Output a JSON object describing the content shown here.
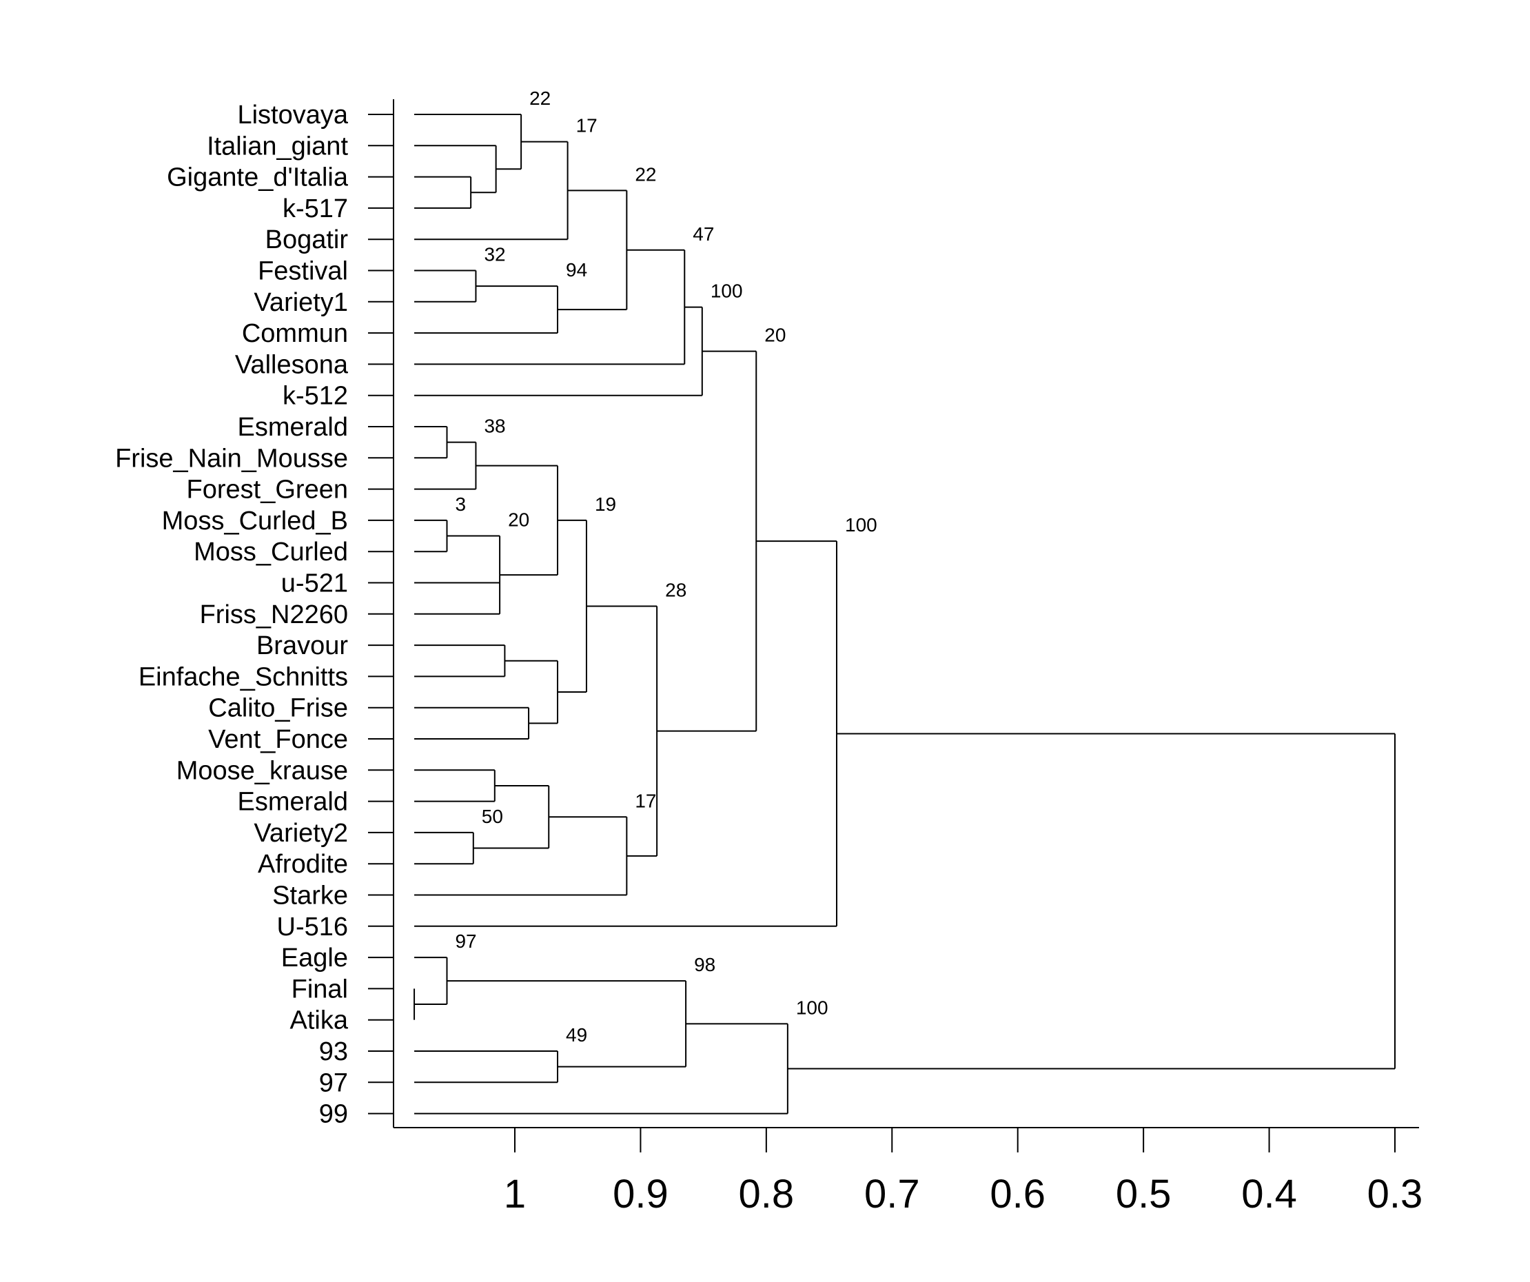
{
  "chart_data": {
    "type": "dendrogram",
    "title": "",
    "xlabel": "",
    "ylabel": "",
    "orientation": "horizontal",
    "x_axis": {
      "range": [
        1.1,
        0.28
      ],
      "ticks": [
        1,
        0.9,
        0.8,
        0.7,
        0.6,
        0.5,
        0.4,
        0.3
      ],
      "tick_labels": [
        "1",
        "0.9",
        "0.8",
        "0.7",
        "0.6",
        "0.5",
        "0.4",
        "0.3"
      ]
    },
    "leaf_height": 1.08,
    "leaves": [
      "Listovaya",
      "Italian_giant",
      "Gigante_d'Italia",
      "k-517",
      "Bogatir",
      "Festival",
      "Variety1",
      "Commun",
      "Vallesona",
      "k-512",
      "Esmerald",
      "Frise_Nain_Mousse",
      "Forest_Green",
      "Moss_Curled_B",
      "Moss_Curled",
      "u-521",
      "Friss_N2260",
      "Bravour",
      "Einfache_Schnitts",
      "Calito_Frise",
      "Vent_Fonce",
      "Moose_krause",
      "Esmerald",
      "Variety2",
      "Afrodite",
      "Starke",
      "U-516",
      "Eagle",
      "Final",
      "Atika",
      "93",
      "97",
      "99"
    ],
    "merges": [
      {
        "id": "n1",
        "children": [
          "L2",
          "L3"
        ],
        "height": 1.035,
        "support": ""
      },
      {
        "id": "n2",
        "children": [
          "L1",
          "n1"
        ],
        "height": 1.015,
        "support": ""
      },
      {
        "id": "n3",
        "children": [
          "L0",
          "n2"
        ],
        "height": 0.995,
        "support": "22"
      },
      {
        "id": "n4",
        "children": [
          "n3",
          "L4"
        ],
        "height": 0.958,
        "support": "17"
      },
      {
        "id": "n5",
        "children": [
          "L5",
          "L6"
        ],
        "height": 1.031,
        "support": "32"
      },
      {
        "id": "n6",
        "children": [
          "n5",
          "L7"
        ],
        "height": 0.966,
        "support": "94"
      },
      {
        "id": "n7",
        "children": [
          "n4",
          "n6"
        ],
        "height": 0.911,
        "support": "22"
      },
      {
        "id": "n8",
        "children": [
          "n7",
          "L8"
        ],
        "height": 0.865,
        "support": "47"
      },
      {
        "id": "n9",
        "children": [
          "n8",
          "L9"
        ],
        "height": 0.851,
        "support": "100"
      },
      {
        "id": "n10",
        "children": [
          "L10",
          "L11"
        ],
        "height": 1.054,
        "support": ""
      },
      {
        "id": "n11",
        "children": [
          "n10",
          "L12"
        ],
        "height": 1.031,
        "support": "38"
      },
      {
        "id": "n12",
        "children": [
          "L13",
          "L14"
        ],
        "height": 1.054,
        "support": "3"
      },
      {
        "id": "n13",
        "children": [
          "n12",
          "L15",
          "L16"
        ],
        "height": 1.012,
        "support": "20"
      },
      {
        "id": "n14",
        "children": [
          "n11",
          "n13"
        ],
        "height": 0.966,
        "support": ""
      },
      {
        "id": "n15",
        "children": [
          "L17",
          "L18"
        ],
        "height": 1.008,
        "support": ""
      },
      {
        "id": "n16",
        "children": [
          "L19",
          "L20"
        ],
        "height": 0.989,
        "support": ""
      },
      {
        "id": "n17",
        "children": [
          "n15",
          "n16"
        ],
        "height": 0.966,
        "support": ""
      },
      {
        "id": "n18",
        "children": [
          "n14",
          "n17"
        ],
        "height": 0.943,
        "support": "19"
      },
      {
        "id": "n19",
        "children": [
          "L21",
          "L22"
        ],
        "height": 1.016,
        "support": ""
      },
      {
        "id": "n20",
        "children": [
          "L23",
          "L24"
        ],
        "height": 1.033,
        "support": "50"
      },
      {
        "id": "n21",
        "children": [
          "n19",
          "n20"
        ],
        "height": 0.973,
        "support": ""
      },
      {
        "id": "n22",
        "children": [
          "n21",
          "L25"
        ],
        "height": 0.911,
        "support": "17"
      },
      {
        "id": "n23",
        "children": [
          "n18",
          "n22"
        ],
        "height": 0.887,
        "support": "28"
      },
      {
        "id": "n24",
        "children": [
          "n9",
          "n23"
        ],
        "height": 0.808,
        "support": "20"
      },
      {
        "id": "n25",
        "children": [
          "n24",
          "L26"
        ],
        "height": 0.744,
        "support": "100"
      },
      {
        "id": "n26",
        "children": [
          "L28",
          "L29"
        ],
        "height": 1.08,
        "support": ""
      },
      {
        "id": "n27",
        "children": [
          "L27",
          "n26"
        ],
        "height": 1.054,
        "support": "97"
      },
      {
        "id": "n28",
        "children": [
          "L30",
          "L31"
        ],
        "height": 0.966,
        "support": "49"
      },
      {
        "id": "n29",
        "children": [
          "n27",
          "n28"
        ],
        "height": 0.864,
        "support": "98"
      },
      {
        "id": "n30",
        "children": [
          "n29",
          "L32"
        ],
        "height": 0.783,
        "support": "100"
      },
      {
        "id": "n31",
        "children": [
          "n25",
          "n30"
        ],
        "height": 0.3,
        "support": ""
      }
    ]
  }
}
